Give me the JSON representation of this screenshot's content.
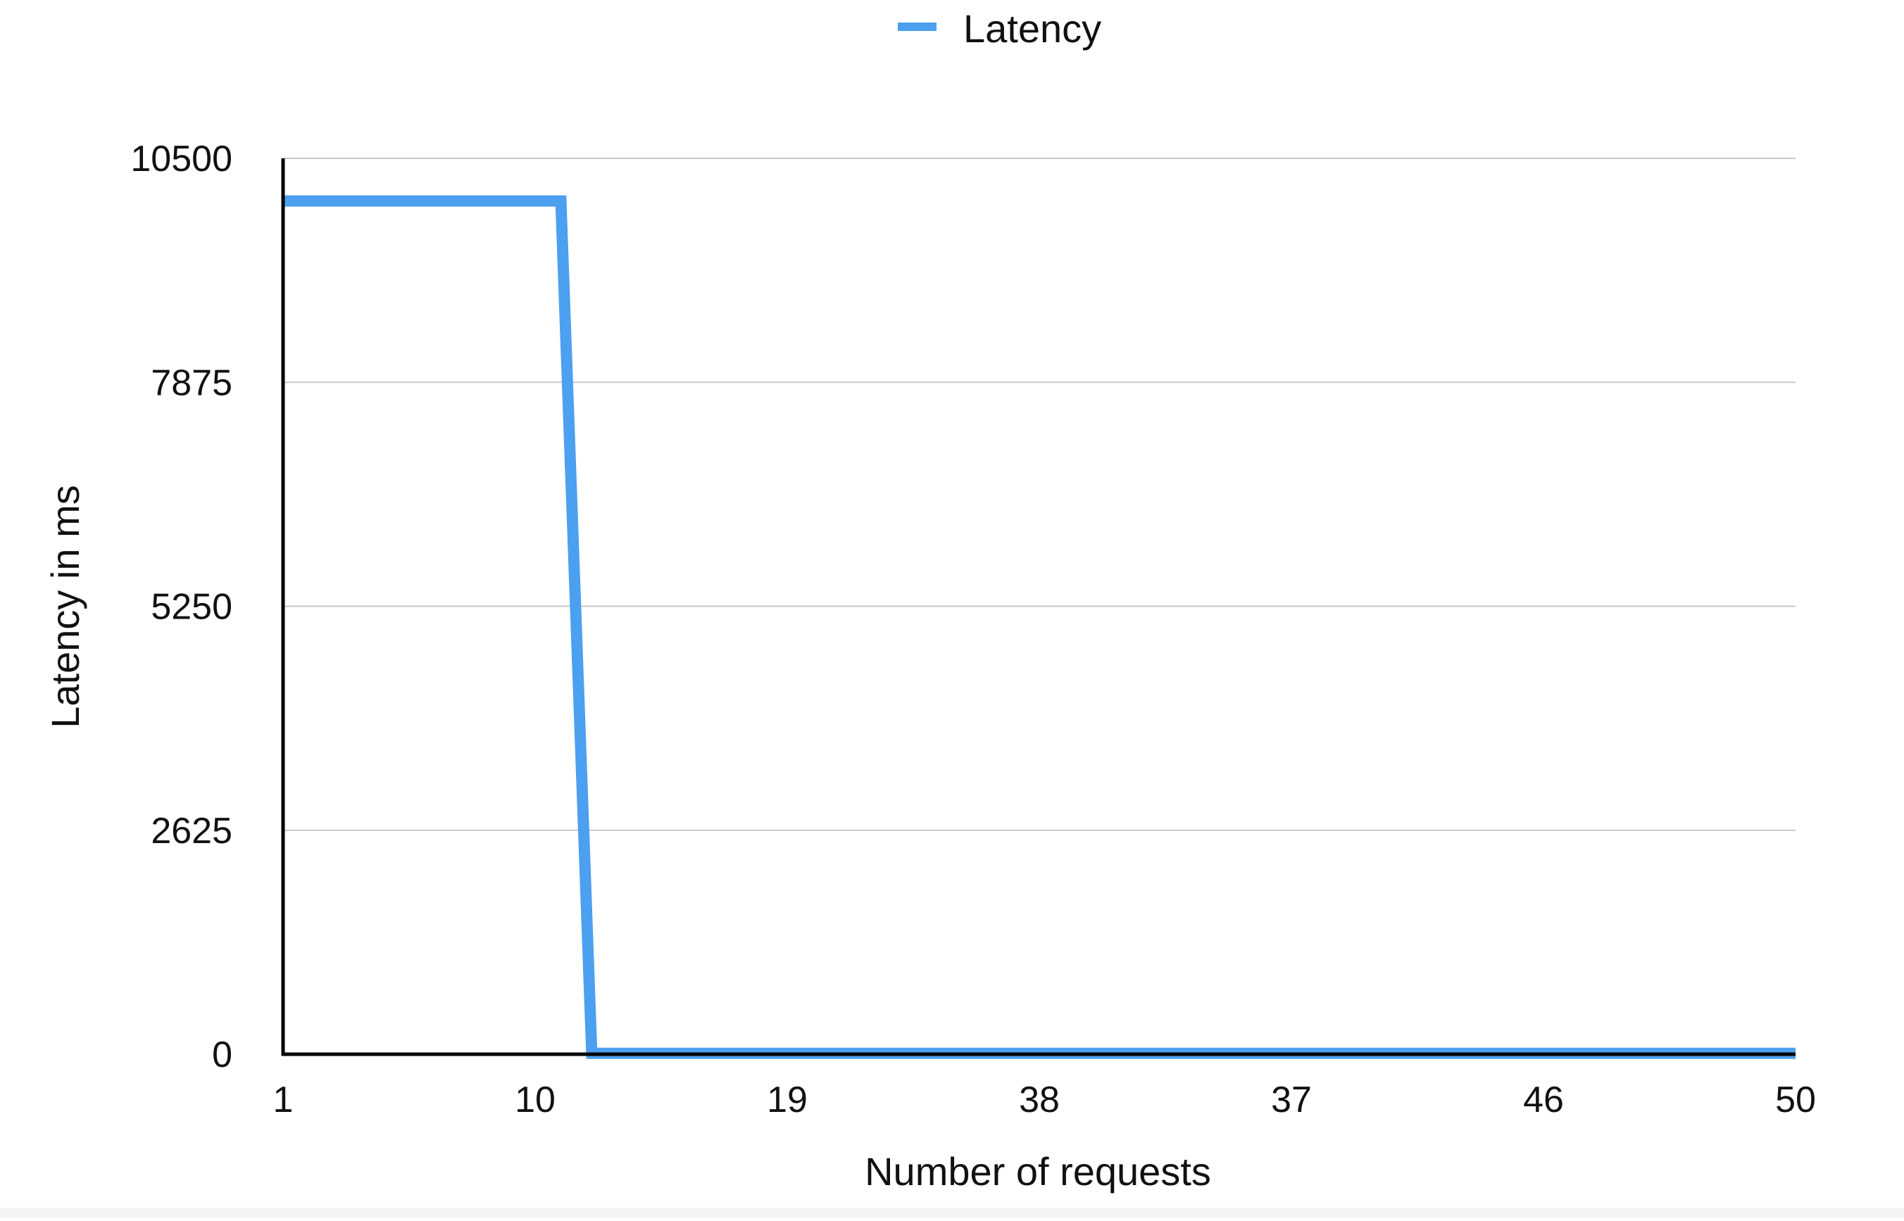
{
  "chart_data": {
    "type": "line",
    "title": "",
    "xlabel": "Number of requests",
    "ylabel": "Latency in ms",
    "legend": {
      "position": "top-center",
      "entries": [
        "Latency"
      ]
    },
    "grid": {
      "horizontal": true,
      "vertical": false
    },
    "ylim": [
      0,
      10500
    ],
    "yticks": [
      "0",
      "2625",
      "5250",
      "7875",
      "10500"
    ],
    "xticks": [
      "1",
      "10",
      "19",
      "38",
      "37",
      "46",
      "50"
    ],
    "x": [
      1,
      2,
      3,
      4,
      5,
      6,
      7,
      8,
      9,
      10,
      11,
      12,
      13,
      14,
      15,
      16,
      17,
      18,
      19,
      20,
      21,
      22,
      23,
      24,
      25,
      26,
      27,
      28,
      29,
      30,
      31,
      32,
      33,
      34,
      35,
      36,
      37,
      38,
      39,
      40,
      41,
      42,
      43,
      44,
      45,
      46,
      47,
      48,
      49,
      50
    ],
    "series": [
      {
        "name": "Latency",
        "color": "#4ba0f0",
        "values": [
          10000,
          10000,
          10000,
          10000,
          10000,
          10000,
          10000,
          10000,
          10000,
          10000,
          10,
          10,
          10,
          10,
          10,
          10,
          10,
          10,
          10,
          10,
          10,
          10,
          10,
          10,
          10,
          10,
          10,
          10,
          10,
          10,
          10,
          10,
          10,
          10,
          10,
          10,
          10,
          10,
          10,
          10,
          10,
          10,
          10,
          10,
          10,
          10,
          10,
          10,
          10,
          10
        ]
      }
    ]
  }
}
